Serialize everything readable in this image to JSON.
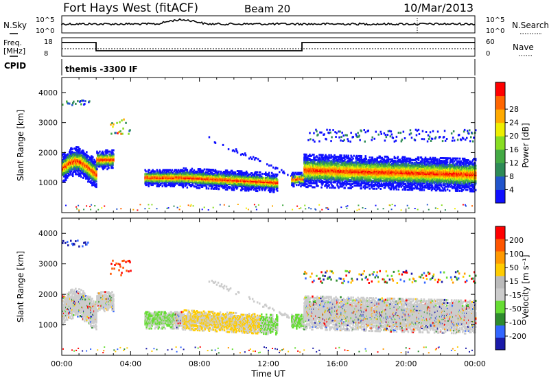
{
  "header": {
    "station": "Fort Hays West (fitACF)",
    "beam": "Beam 20",
    "date": "10/Mar/2013"
  },
  "panels": {
    "nsky": {
      "label": "N.Sky",
      "tick_top": "10^5",
      "tick_bottom": "10^0"
    },
    "nsearch": {
      "label": "N.Search",
      "tick_top": "10^5",
      "tick_bottom": "10^0"
    },
    "freq": {
      "label_line1": "Freq.",
      "label_line2": "[MHz]",
      "tick_top": "18",
      "tick_bottom": "8"
    },
    "nave": {
      "label": "Nave",
      "tick_top": "60",
      "tick_bottom": "0"
    },
    "cpid": {
      "label": "CPID",
      "mode": "themis -3300 IF"
    }
  },
  "colors": {
    "power": [
      "#1010ff",
      "#2255cc",
      "#2e8b57",
      "#44aa44",
      "#88dd22",
      "#eeee00",
      "#ffaa00",
      "#ff6600",
      "#ff0000"
    ],
    "velocity": [
      "#1a1aa8",
      "#3366ff",
      "#2e8b2e",
      "#66dd33",
      "#cccccc",
      "#bbbbbb",
      "#ffcc00",
      "#ff9900",
      "#ff5500",
      "#ff0000"
    ]
  },
  "chart_data": [
    {
      "type": "heatmap",
      "name": "power",
      "ylabel": "Slant Range [km]",
      "xlabel": "",
      "ylim": [
        0,
        4500
      ],
      "xlim_hours": [
        0,
        24
      ],
      "y_ticks": [
        "1000",
        "2000",
        "3000",
        "4000"
      ],
      "colorbar_label": "Power [dB]",
      "colorbar_ticks": [
        "4",
        "8",
        "12",
        "16",
        "20",
        "24",
        "28"
      ],
      "colorbar_range": [
        0,
        32
      ]
    },
    {
      "type": "heatmap",
      "name": "velocity",
      "ylabel": "Slant Range [km]",
      "xlabel": "Time UT",
      "ylim": [
        0,
        4500
      ],
      "xlim_hours": [
        0,
        24
      ],
      "y_ticks": [
        "1000",
        "2000",
        "3000",
        "4000"
      ],
      "x_ticks": [
        "00:00",
        "04:00",
        "08:00",
        "12:00",
        "16:00",
        "20:00",
        "00:00"
      ],
      "colorbar_label": "Velocity [m s⁻¹]",
      "colorbar_ticks": [
        "200",
        "100",
        "50",
        "15",
        "-15",
        "-50",
        "-100",
        "-200"
      ]
    }
  ]
}
